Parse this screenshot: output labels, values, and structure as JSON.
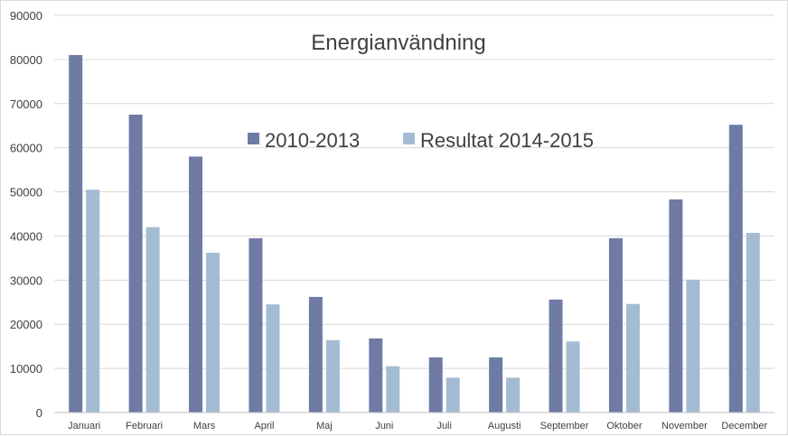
{
  "chart_data": {
    "type": "bar",
    "title": "Energianvändning",
    "xlabel": "",
    "ylabel": "",
    "ylim": [
      0,
      90000
    ],
    "yticks": [
      0,
      10000,
      20000,
      30000,
      40000,
      50000,
      60000,
      70000,
      80000,
      90000
    ],
    "grid": true,
    "legend_position": "top-center",
    "categories": [
      "Januari",
      "Februari",
      "Mars",
      "April",
      "Maj",
      "Juni",
      "Juli",
      "Augusti",
      "September",
      "Oktober",
      "November",
      "December"
    ],
    "series": [
      {
        "name": "2010-2013",
        "color": "#6f7ba5",
        "values": [
          81000,
          67500,
          58000,
          39500,
          26200,
          16800,
          12500,
          12500,
          25600,
          39500,
          48300,
          65200
        ]
      },
      {
        "name": "Resultat 2014-2015",
        "color": "#a4bcd3",
        "values": [
          50500,
          42000,
          36200,
          24500,
          16400,
          10500,
          7900,
          7900,
          16100,
          24600,
          30100,
          40700
        ]
      }
    ]
  }
}
